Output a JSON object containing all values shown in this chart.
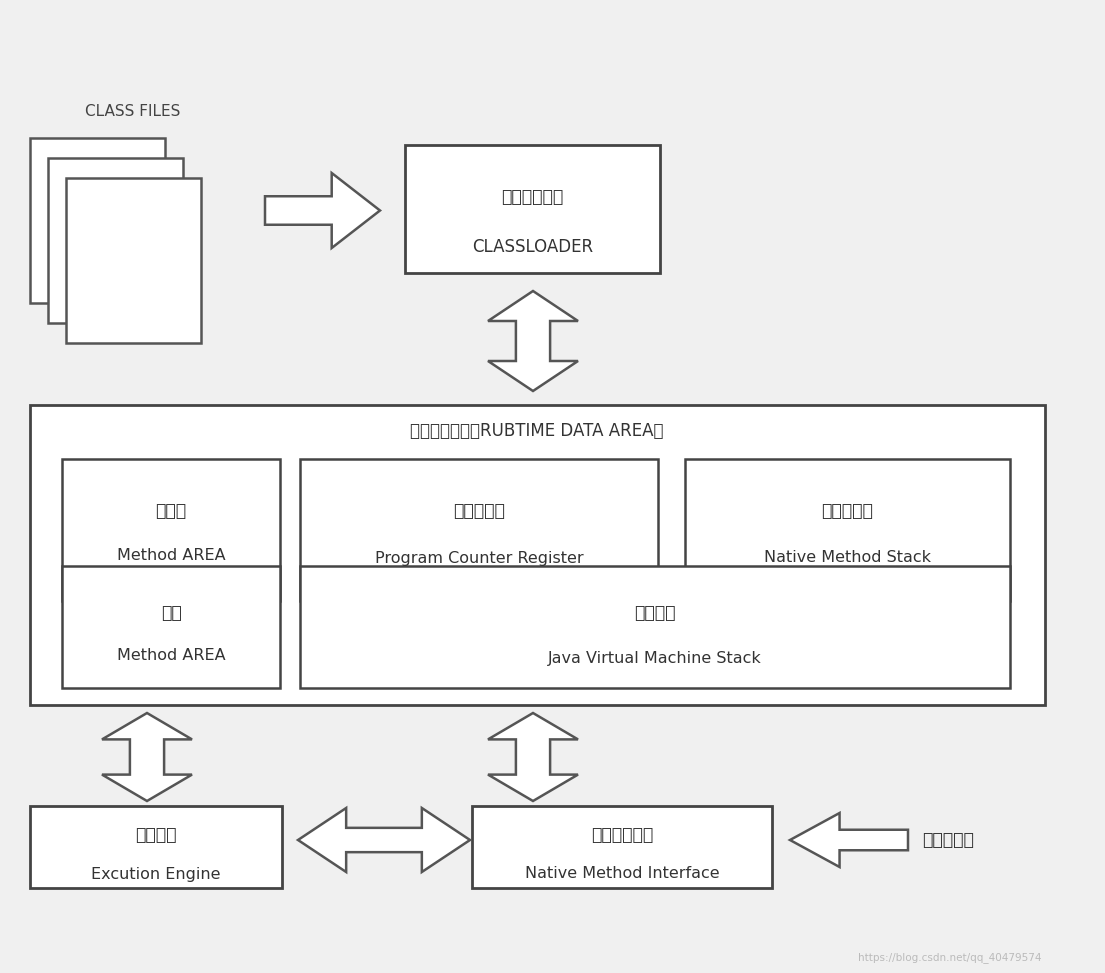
{
  "bg_color": "#f0f0f0",
  "box_color": "#ffffff",
  "border_color": "#444444",
  "text_color": "#333333",
  "class_files_label": "CLASS FILES",
  "classloader_line1": "类加载子系统",
  "classloader_line2": "CLASSLOADER",
  "runtime_label": "运行时数据区（RUBTIME DATA AREA）",
  "method_area_line1": "方法区",
  "method_area_line2": "Method AREA",
  "pc_line1": "程序计数器",
  "pc_line2": "Program Counter Register",
  "native_stack_line1": "本地方法栈",
  "native_stack_line2": "Native Method Stack",
  "heap_line1": "堆区",
  "heap_line2": "Method AREA",
  "jvm_stack_line1": "虚拟机栈",
  "jvm_stack_line2": "Java Virtual Machine Stack",
  "exec_engine_line1": "执行引擎",
  "exec_engine_line2": "Excution Engine",
  "native_interface_line1": "本地方法接口",
  "native_interface_line2": "Native Method Interface",
  "native_lib_label": "本地方法库",
  "watermark": "https://blog.csdn.net/qq_40479574"
}
